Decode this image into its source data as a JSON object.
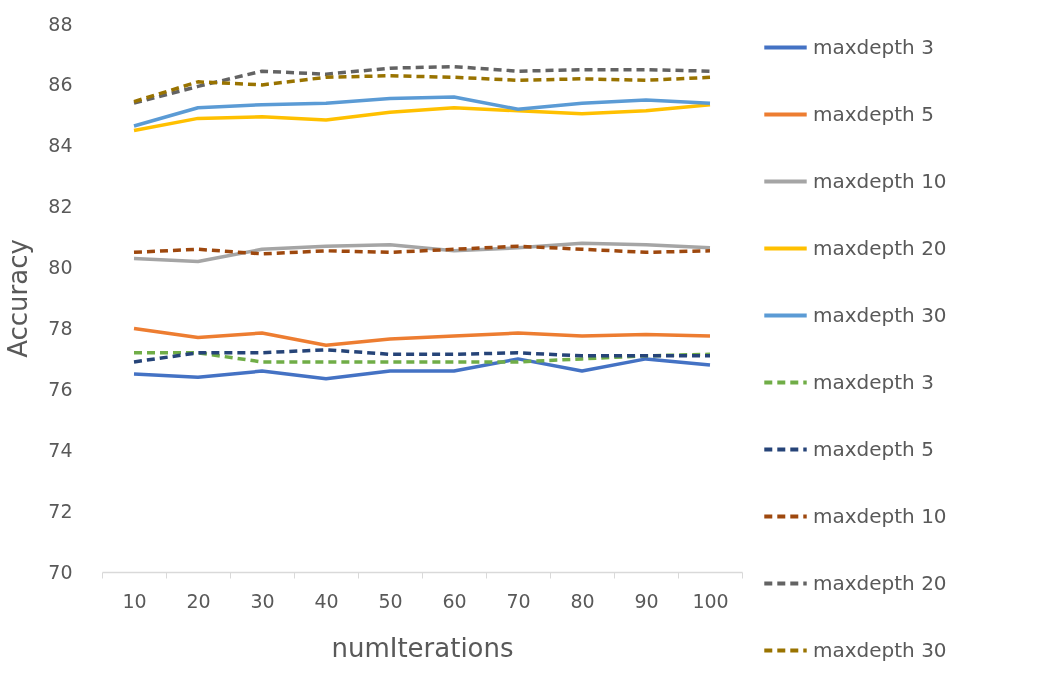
{
  "chart_data": {
    "type": "line",
    "xlabel": "numIterations",
    "ylabel": "Accuracy",
    "categories": [
      "10",
      "20",
      "30",
      "40",
      "50",
      "60",
      "70",
      "80",
      "90",
      "100"
    ],
    "ylim": [
      70,
      88
    ],
    "yticks": [
      70,
      72,
      74,
      76,
      78,
      80,
      82,
      84,
      86,
      88
    ],
    "grid": false,
    "legend": "right",
    "marker": "none",
    "series": [
      {
        "name": "maxdepth 3",
        "color": "#4472c4",
        "line_style": "solid",
        "values": [
          76.5,
          76.4,
          76.6,
          76.35,
          76.6,
          76.6,
          77.0,
          76.6,
          77.0,
          76.8
        ]
      },
      {
        "name": "maxdepth 5",
        "color": "#ed7d31",
        "line_style": "solid",
        "values": [
          78.0,
          77.7,
          77.85,
          77.45,
          77.65,
          77.75,
          77.85,
          77.75,
          77.8,
          77.75
        ]
      },
      {
        "name": "maxdepth 10",
        "color": "#a5a5a5",
        "line_style": "solid",
        "values": [
          80.3,
          80.2,
          80.6,
          80.7,
          80.75,
          80.55,
          80.65,
          80.8,
          80.75,
          80.65
        ]
      },
      {
        "name": "maxdepth 20",
        "color": "#ffc000",
        "line_style": "solid",
        "values": [
          84.5,
          84.9,
          84.95,
          84.85,
          85.1,
          85.25,
          85.15,
          85.05,
          85.15,
          85.35
        ]
      },
      {
        "name": "maxdepth 30",
        "color": "#5b9bd5",
        "line_style": "solid",
        "values": [
          84.65,
          85.25,
          85.35,
          85.4,
          85.55,
          85.6,
          85.2,
          85.4,
          85.5,
          85.4
        ]
      },
      {
        "name": "maxdepth 3",
        "color": "#70ad47",
        "line_style": "dashed",
        "values": [
          77.2,
          77.2,
          76.9,
          76.9,
          76.9,
          76.9,
          76.9,
          77.0,
          77.1,
          77.15
        ]
      },
      {
        "name": "maxdepth 5",
        "color": "#264478",
        "line_style": "dashed",
        "values": [
          76.9,
          77.2,
          77.2,
          77.3,
          77.15,
          77.15,
          77.2,
          77.1,
          77.1,
          77.1
        ]
      },
      {
        "name": "maxdepth 10",
        "color": "#9e480e",
        "line_style": "dashed",
        "values": [
          80.5,
          80.6,
          80.45,
          80.55,
          80.5,
          80.6,
          80.7,
          80.6,
          80.5,
          80.55
        ]
      },
      {
        "name": "maxdepth 20",
        "color": "#636363",
        "line_style": "dashed",
        "values": [
          85.4,
          85.95,
          86.45,
          86.35,
          86.55,
          86.6,
          86.45,
          86.5,
          86.5,
          86.45
        ]
      },
      {
        "name": "maxdepth 30",
        "color": "#997300",
        "line_style": "dashed",
        "values": [
          85.45,
          86.1,
          86.0,
          86.25,
          86.3,
          86.25,
          86.15,
          86.2,
          86.15,
          86.25
        ]
      }
    ]
  }
}
